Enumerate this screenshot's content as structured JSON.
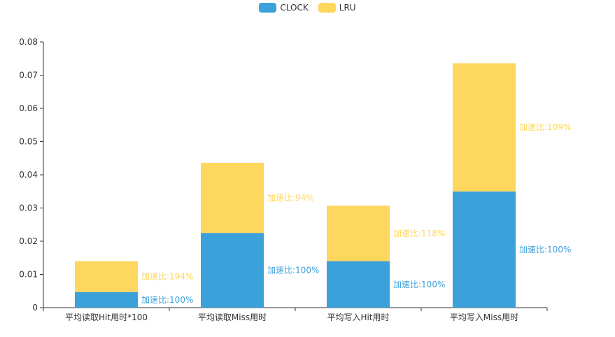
{
  "chart_data": {
    "type": "bar",
    "stacked": true,
    "categories": [
      "平均读取Hit用时*100",
      "平均读取Miss用时",
      "平均写入Hit用时",
      "平均写入Miss用时"
    ],
    "series": [
      {
        "name": "CLOCK",
        "color": "#3ba1db",
        "values": [
          0.0047,
          0.0225,
          0.014,
          0.035
        ],
        "labels": [
          "加速比:100%",
          "加速比:100%",
          "加速比:100%",
          "加速比:100%"
        ]
      },
      {
        "name": "LRU",
        "color": "#fed75e",
        "values": [
          0.0093,
          0.0211,
          0.0167,
          0.0386
        ],
        "labels": [
          "加速比:194%",
          "加速比:94%",
          "加速比:118%",
          "加速比:109%"
        ]
      }
    ],
    "ylim": [
      0,
      0.08
    ],
    "yticks": [
      "0",
      "0.01",
      "0.02",
      "0.03",
      "0.04",
      "0.05",
      "0.06",
      "0.07",
      "0.08"
    ],
    "grid": false,
    "legend_position": "top-center"
  }
}
